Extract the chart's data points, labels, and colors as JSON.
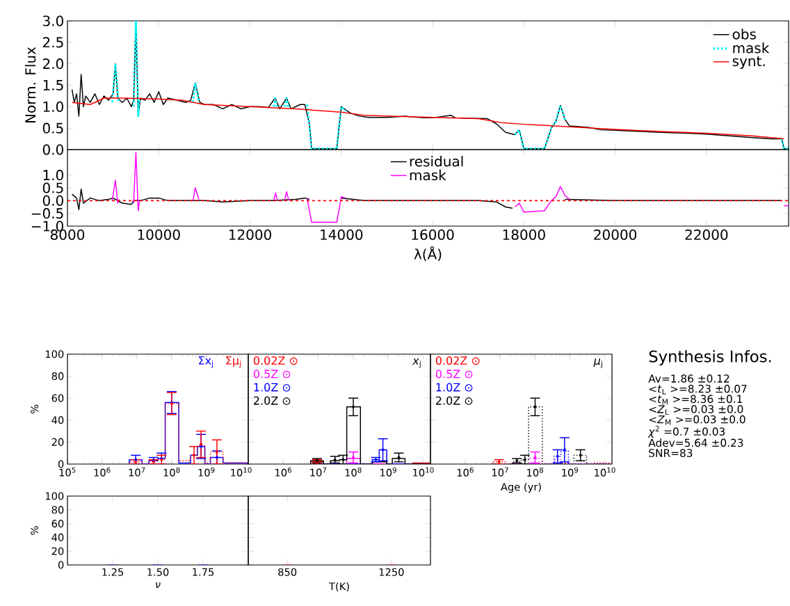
{
  "chart_data": [
    {
      "type": "line",
      "ylabel": "Norm. Flux",
      "xlim": [
        8000,
        23800
      ],
      "ylim": [
        0,
        3.0
      ],
      "tick_labels": "y",
      "legend": "top right",
      "xticks": [
        8000,
        10000,
        12000,
        14000,
        16000,
        18000,
        20000,
        22000
      ],
      "yticks": [
        {
          "value": 0,
          "label": "0.0"
        },
        {
          "value": 0.5,
          "label": "0.5"
        },
        {
          "value": 1.0,
          "label": "1.0"
        },
        {
          "value": 1.5,
          "label": "1.5"
        },
        {
          "value": 2.0,
          "label": "2.0"
        },
        {
          "value": 2.5,
          "label": "2.5"
        },
        {
          "value": 3.0,
          "label": "3.0"
        }
      ],
      "series": [
        {
          "name": "obs",
          "color": "#000000",
          "line_style": "solid",
          "x": [
            8100,
            8150,
            8200,
            8250,
            8300,
            8350,
            8400,
            8500,
            8600,
            8700,
            8800,
            8900,
            9000,
            9050,
            9100,
            9200,
            9300,
            9400,
            9450,
            9500,
            9550,
            9600,
            9700,
            9800,
            9900,
            10000,
            10100,
            10200,
            10400,
            10600,
            10700,
            10800,
            10900,
            11000,
            11200,
            11400,
            11600,
            11800,
            12000,
            12200,
            12400,
            12550,
            12650,
            12800,
            12900,
            13100,
            13200,
            13300,
            13350,
            13900,
            14000,
            14200,
            14400,
            14600,
            15000,
            15400,
            15800,
            16000,
            16400,
            16500,
            16800,
            17200,
            17400,
            17600,
            17800,
            17900,
            18000,
            18450,
            18600,
            18700,
            18800,
            18900,
            19000,
            19400,
            19700,
            20000,
            21000,
            21600,
            22000,
            22500,
            23000,
            23400,
            23650,
            23700,
            23800
          ],
          "values": [
            1.4,
            1.1,
            1.3,
            0.78,
            1.75,
            1.0,
            1.25,
            1.1,
            1.3,
            1.05,
            1.25,
            1.15,
            1.3,
            2.0,
            1.2,
            1.1,
            1.2,
            1.0,
            1.15,
            3.0,
            0.78,
            1.2,
            1.15,
            1.3,
            1.1,
            1.35,
            1.05,
            1.2,
            1.15,
            1.1,
            1.15,
            1.55,
            1.1,
            1.05,
            1.05,
            0.95,
            1.05,
            0.95,
            1.0,
            1.0,
            0.98,
            1.2,
            0.95,
            1.2,
            0.95,
            1.05,
            1.05,
            0.6,
            0.02,
            0.02,
            1.0,
            0.85,
            0.78,
            0.75,
            0.75,
            0.78,
            0.74,
            0.74,
            0.8,
            0.74,
            0.73,
            0.72,
            0.6,
            0.4,
            0.35,
            0.45,
            0.02,
            0.02,
            0.5,
            0.65,
            1.03,
            0.7,
            0.55,
            0.52,
            0.46,
            0.45,
            0.4,
            0.38,
            0.36,
            0.32,
            0.28,
            0.25,
            0.25,
            0.02,
            0.02
          ]
        },
        {
          "name": "mask",
          "color": "#00ffff",
          "line_style": "dotted",
          "x": [
            8980,
            9050,
            9120,
            9300,
            9450,
            9500,
            9550,
            9580,
            10000,
            10750,
            10800,
            10880,
            11500,
            12520,
            12550,
            12600,
            12700,
            12760,
            12800,
            12850,
            13000,
            13250,
            13300,
            13350,
            13900,
            14000,
            14100,
            16000,
            17800,
            17900,
            18000,
            18450,
            18600,
            18700,
            18800,
            18900,
            21000,
            23650,
            23700,
            23800
          ],
          "values": [
            1.1,
            2.0,
            1.1,
            null,
            1.0,
            3.0,
            0.78,
            1.2,
            null,
            1.1,
            1.55,
            1.1,
            null,
            1.0,
            1.2,
            0.95,
            null,
            1.0,
            1.2,
            0.95,
            null,
            1.05,
            0.6,
            0.02,
            0.02,
            1.0,
            0.9,
            null,
            0.35,
            0.45,
            0.02,
            0.02,
            0.5,
            0.65,
            1.03,
            0.7,
            null,
            0.25,
            0.02,
            0.02
          ]
        },
        {
          "name": "synt.",
          "color": "#ff0000",
          "line_style": "solid",
          "x": [
            8100,
            8500,
            8800,
            9200,
            10000,
            10500,
            11000,
            12000,
            13000,
            14000,
            14500,
            16000,
            17000,
            17500,
            18000,
            19000,
            20000,
            21000,
            22000,
            23000,
            23700
          ],
          "values": [
            1.1,
            1.05,
            1.2,
            1.2,
            1.18,
            1.15,
            1.05,
            1.0,
            0.95,
            0.87,
            0.8,
            0.75,
            0.72,
            0.63,
            0.59,
            0.53,
            0.47,
            0.42,
            0.38,
            0.32,
            0.25
          ]
        }
      ]
    },
    {
      "type": "line",
      "xlabel": "λ(Å)",
      "xlim": [
        8000,
        23800
      ],
      "ylim": [
        -1.0,
        2.0
      ],
      "legend": "top",
      "xticks": [
        8000,
        10000,
        12000,
        14000,
        16000,
        18000,
        20000,
        22000
      ],
      "yticks": [
        {
          "value": -1.0,
          "label": "−1.0"
        },
        {
          "value": -0.5,
          "label": "−0.5"
        },
        {
          "value": 0,
          "label": "0.0"
        },
        {
          "value": 0.5,
          "label": "0.5"
        },
        {
          "value": 1.0,
          "label": "1.0"
        }
      ],
      "ref_lines": [
        {
          "axis": "y",
          "value": 0,
          "color": "#ff0000",
          "line_style": "dashed"
        }
      ],
      "series": [
        {
          "name": "residual",
          "color": "#000000",
          "line_style": "solid",
          "x": [
            8100,
            8200,
            8250,
            8300,
            8350,
            8500,
            8700,
            8900,
            9000,
            9200,
            9400,
            9450,
            9600,
            9800,
            10000,
            10200,
            10500,
            11000,
            11400,
            12000,
            12500,
            13000,
            13200,
            13300,
            13600,
            14000,
            14500,
            16000,
            17000,
            17400,
            17600,
            17750,
            18300,
            18900,
            20000,
            22000,
            23650
          ],
          "values": [
            0.25,
            0.1,
            -0.35,
            0.45,
            -0.1,
            0.1,
            0.0,
            0.05,
            0.1,
            -0.1,
            -0.15,
            0.0,
            0.0,
            0.1,
            0.1,
            0.0,
            0.0,
            0.0,
            -0.05,
            0.0,
            0.0,
            0.05,
            0.1,
            0.05,
            null,
            0.1,
            0.0,
            0.0,
            0.0,
            -0.05,
            -0.25,
            -0.3,
            null,
            0.05,
            0.0,
            0.0,
            0.0
          ]
        },
        {
          "name": "mask",
          "color": "#ff00ff",
          "line_style": "solid",
          "x": [
            8980,
            9050,
            9100,
            9120,
            9300,
            9450,
            9500,
            9550,
            9580,
            10000,
            10750,
            10800,
            10880,
            11500,
            12520,
            12560,
            12600,
            12700,
            12760,
            12800,
            12850,
            13000,
            13250,
            13350,
            13900,
            14000,
            14100,
            16000,
            17800,
            17900,
            18000,
            18450,
            18600,
            18700,
            18800,
            18900,
            19000,
            21000,
            23700,
            23800
          ],
          "values": [
            0.0,
            0.8,
            -0.1,
            0.05,
            null,
            -0.1,
            1.9,
            -0.4,
            0.0,
            null,
            0.0,
            0.5,
            0.05,
            null,
            0.0,
            0.3,
            0.0,
            null,
            0.0,
            0.35,
            0.0,
            null,
            0.1,
            -0.85,
            -0.85,
            0.15,
            0.1,
            null,
            -0.25,
            -0.1,
            -0.45,
            -0.4,
            0.0,
            0.15,
            0.55,
            0.2,
            0.05,
            null,
            -0.2,
            -0.2
          ]
        }
      ]
    },
    {
      "type": "histogram",
      "ylabel": "%",
      "log": "x",
      "xlim": [
        100000,
        16000000000
      ],
      "ylim": [
        0,
        100
      ],
      "legend": "top right",
      "xticks": [
        {
          "value": 100000,
          "label": "10$^{5}$"
        },
        {
          "value": 1000000,
          "label": "10$^{6}$"
        },
        {
          "value": 10000000,
          "label": "10$^{7}$"
        },
        {
          "value": 100000000,
          "label": "10$^{8}$"
        },
        {
          "value": 1000000000,
          "label": "10$^{9}$"
        },
        {
          "value": 10000000000,
          "label": "10$^{10}$"
        }
      ],
      "yticks": [
        0,
        20,
        40,
        60,
        80,
        100
      ],
      "bins": [
        6000000,
        14000000,
        22000000,
        40000000,
        65000000,
        160000000,
        350000000,
        550000000,
        900000000,
        1300000000,
        3000000000,
        5000000000,
        15000000000
      ],
      "series": [
        {
          "name": "Σx$_{j}$",
          "color": "#0000ff",
          "line_style": "solid",
          "values": [
            4,
            null,
            3,
            5,
            56,
            1,
            8,
            16,
            null,
            6,
            1,
            1
          ]
        },
        {
          "name": "Σμ$_{j}$",
          "color": "#ff0000",
          "line_style": "dotted",
          "values": [
            2,
            null,
            3,
            4,
            55,
            3,
            8,
            17,
            1,
            11,
            1,
            1
          ]
        },
        {
          "type": "scatter",
          "marker": "circle",
          "color": "#0000ff",
          "x": [
            9200000,
            30000000,
            51000000,
            100000000,
            700000000,
            2000000000
          ],
          "values": [
            4,
            3,
            5,
            56,
            16,
            6
          ],
          "errors": [
            4,
            3,
            5,
            10,
            11,
            6
          ]
        },
        {
          "type": "scatter",
          "marker": "circle",
          "color": "#ff0000",
          "x": [
            9200000,
            30000000,
            51000000,
            100000000,
            440000000,
            700000000,
            2000000000
          ],
          "values": [
            2,
            2,
            4,
            55,
            8,
            18,
            11
          ],
          "errors": [
            2,
            2,
            4,
            10,
            8,
            12,
            11
          ]
        }
      ]
    },
    {
      "type": "histogram",
      "log": "x",
      "xlim": [
        100000,
        16000000000
      ],
      "ylim": [
        0,
        100
      ],
      "legend": "top left",
      "tick_labels": "x",
      "annotations": [
        "*x*$_{j}$"
      ],
      "xticks": [
        {
          "value": 1000000,
          "label": "10$^{6}$"
        },
        {
          "value": 10000000,
          "label": "10$^{7}$"
        },
        {
          "value": 100000000,
          "label": "10$^{8}$"
        },
        {
          "value": 1000000000,
          "label": "10$^{9}$"
        },
        {
          "value": 10000000000,
          "label": "10$^{10}$"
        }
      ],
      "yticks": [
        0,
        20,
        40,
        60,
        80,
        100
      ],
      "bins": [
        6000000,
        14000000,
        22000000,
        40000000,
        65000000,
        160000000,
        350000000,
        550000000,
        900000000,
        1300000000,
        3000000000,
        5000000000,
        15000000000
      ],
      "series": [
        {
          "name": "0.02Z ⊙",
          "color": "#ff0000",
          "line_style": "solid",
          "values": [
            2,
            null,
            null,
            null,
            null,
            null,
            null,
            null,
            null,
            null,
            null,
            1
          ]
        },
        {
          "name": "0.5Z ⊙",
          "color": "#ff00ff",
          "line_style": "solid",
          "values": [
            null,
            null,
            null,
            null,
            5,
            null,
            null,
            null,
            null,
            null,
            null,
            null
          ]
        },
        {
          "name": "1.0Z ⊙",
          "color": "#0000ff",
          "line_style": "solid",
          "values": [
            null,
            null,
            null,
            null,
            null,
            null,
            4,
            13,
            null,
            null,
            null,
            null
          ]
        },
        {
          "name": "2.0Z ⊙",
          "color": "#000000",
          "line_style": "solid",
          "values": [
            3,
            null,
            3,
            4,
            52,
            null,
            2,
            2,
            null,
            5,
            null,
            null
          ]
        },
        {
          "type": "scatter",
          "marker": "circle",
          "color": "#ff0000",
          "x": [
            9200000
          ],
          "values": [
            2
          ],
          "errors": [
            2
          ]
        },
        {
          "type": "scatter",
          "marker": "circle",
          "color": "#ff00ff",
          "x": [
            100000000
          ],
          "values": [
            6
          ],
          "errors": [
            5
          ]
        },
        {
          "type": "scatter",
          "marker": "circle",
          "color": "#0000ff",
          "x": [
            440000000,
            700000000
          ],
          "values": [
            4,
            13
          ],
          "errors": [
            2,
            10
          ]
        },
        {
          "type": "scatter",
          "marker": "circle",
          "color": "#000000",
          "x": [
            9200000,
            30000000,
            51000000,
            100000000,
            2000000000
          ],
          "values": [
            3,
            4,
            4,
            52,
            6
          ],
          "errors": [
            2,
            3,
            4,
            8,
            4
          ]
        }
      ]
    },
    {
      "type": "histogram",
      "xlabel": "Age (yr)",
      "log": "x",
      "xlim": [
        100000,
        16000000000
      ],
      "ylim": [
        0,
        100
      ],
      "legend": "top left",
      "tick_labels": "x",
      "annotations": [
        "*μ*$_{j}$"
      ],
      "xticks": [
        {
          "value": 1000000,
          "label": "10$^{6}$"
        },
        {
          "value": 10000000,
          "label": "10$^{7}$"
        },
        {
          "value": 100000000,
          "label": "10$^{8}$"
        },
        {
          "value": 1000000000,
          "label": "10$^{9}$"
        },
        {
          "value": 10000000000,
          "label": "10$^{10}$"
        }
      ],
      "yticks": [
        0,
        20,
        40,
        60,
        80,
        100
      ],
      "bins": [
        6000000,
        14000000,
        22000000,
        40000000,
        65000000,
        160000000,
        350000000,
        550000000,
        900000000,
        1300000000,
        3000000000,
        5000000000,
        15000000000
      ],
      "series": [
        {
          "name": "0.02Z ⊙",
          "color": "#ff0000",
          "line_style": "dotted",
          "values": [
            2,
            null,
            null,
            null,
            null,
            null,
            null,
            1,
            null,
            null,
            null,
            1
          ]
        },
        {
          "name": "0.5Z ⊙",
          "color": "#ff00ff",
          "line_style": "dotted",
          "values": [
            null,
            null,
            null,
            null,
            5,
            null,
            4,
            null,
            null,
            null,
            null,
            null
          ]
        },
        {
          "name": "1.0Z ⊙",
          "color": "#0000ff",
          "line_style": "dotted",
          "values": [
            null,
            null,
            null,
            null,
            null,
            null,
            7,
            12,
            null,
            null,
            null,
            null
          ]
        },
        {
          "name": "2.0Z ⊙",
          "color": "#000000",
          "line_style": "dotted",
          "values": [
            null,
            null,
            2,
            4,
            52,
            null,
            null,
            null,
            null,
            8,
            null,
            null
          ]
        },
        {
          "type": "scatter",
          "marker": "circle",
          "color": "#ff0000",
          "x": [
            9200000
          ],
          "values": [
            2
          ],
          "errors": [
            2
          ]
        },
        {
          "type": "scatter",
          "marker": "circle",
          "color": "#ff00ff",
          "x": [
            100000000
          ],
          "values": [
            6
          ],
          "errors": [
            5
          ]
        },
        {
          "type": "scatter",
          "marker": "circle",
          "color": "#0000ff",
          "x": [
            440000000,
            700000000
          ],
          "values": [
            7,
            13
          ],
          "errors": [
            6,
            11
          ]
        },
        {
          "type": "scatter",
          "marker": "circle",
          "color": "#000000",
          "x": [
            30000000,
            51000000,
            100000000,
            2000000000
          ],
          "values": [
            3,
            4,
            52,
            8
          ],
          "errors": [
            2,
            4,
            8,
            5
          ]
        }
      ]
    },
    {
      "type": "other",
      "title": "Synthesis Infos.",
      "annotations": [
        "Av=1.86 ±0.12",
        "<*t*$_{L}$ >=8.23 ±0.07",
        "<*t*$_{M}$ >=8.36 ±0.1",
        "<*Z*$_{L}$ >=0.03 ±0.0",
        "<*Z*$_{M}$ >=0.03 ±0.0",
        "*χ*$^{2}$ =0.7 ±0.03",
        "Adev=5.64 ±0.23",
        "SNR=83"
      ]
    },
    {
      "type": "bar",
      "ylabel": "%",
      "xlabel": "*ν*",
      "xlim": [
        1.0,
        2.0
      ],
      "ylim": [
        0,
        100
      ],
      "color": "#0000ff",
      "xticks": [
        {
          "value": 1.25,
          "label": "1.25"
        },
        {
          "value": 1.5,
          "label": "1.50"
        },
        {
          "value": 1.75,
          "label": "1.75"
        }
      ],
      "yticks": [
        0,
        20,
        40,
        60,
        80,
        100
      ],
      "x": [
        1.25,
        1.5,
        1.75
      ],
      "values": [
        0,
        0,
        0
      ]
    },
    {
      "type": "bar",
      "xlabel": "T(K)",
      "xlim": [
        700,
        1400
      ],
      "ylim": [
        0,
        100
      ],
      "color": "#ff0000",
      "tick_labels": "x",
      "xticks": [
        850,
        1250
      ],
      "yticks": [
        0,
        20,
        40,
        60,
        80,
        100
      ],
      "x": [
        850,
        1250
      ],
      "values": [
        0,
        0
      ]
    }
  ]
}
